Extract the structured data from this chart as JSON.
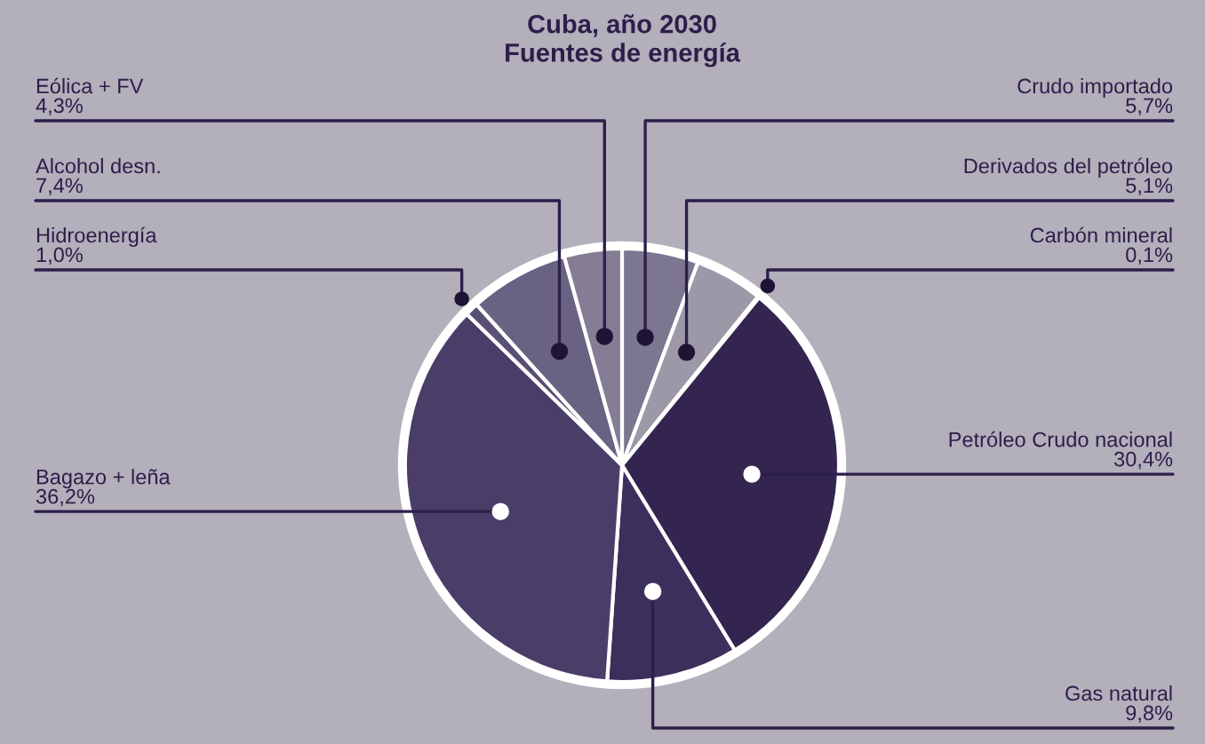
{
  "chart_data": {
    "type": "pie",
    "title": "Cuba, año 2030",
    "subtitle": "Fuentes de energía",
    "categories": [
      "Crudo importado",
      "Derivados del petróleo",
      "Carbón mineral",
      "Petróleo Crudo nacional",
      "Gas natural",
      "Bagazo + leña",
      "Hidroenergía",
      "Alcohol desn.",
      "Eólica + FV"
    ],
    "values": [
      5.7,
      5.1,
      0.1,
      30.4,
      9.8,
      36.2,
      1.0,
      7.4,
      4.3
    ],
    "value_labels": [
      "5,7%",
      "5,1%",
      "0,1%",
      "30,4%",
      "9,8%",
      "36,2%",
      "1,0%",
      "7,4%",
      "4,3%"
    ],
    "colors": [
      "#7c7690",
      "#9d98a8",
      "#2c1f4a",
      "#33254f",
      "#3d2f5b",
      "#4a3e69",
      "#5a4f74",
      "#6a6282",
      "#847d95"
    ],
    "legend": false
  }
}
